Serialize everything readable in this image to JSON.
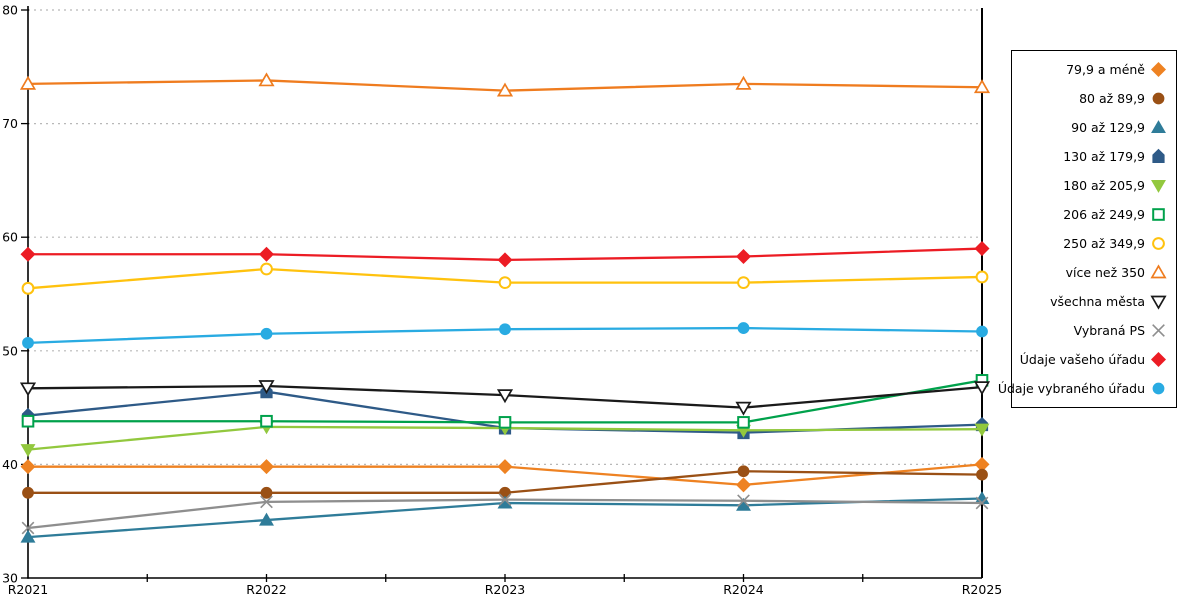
{
  "chart_data": {
    "type": "line",
    "title": "",
    "x_categories": [
      "R2021",
      "R2022",
      "R2023",
      "R2024",
      "R2025"
    ],
    "ylim": [
      30,
      80
    ],
    "yticks": [
      30,
      40,
      50,
      60,
      70,
      80
    ],
    "grid": "horizontal dotted gridlines at 40,50,60,70,80",
    "legend_position": "right outside",
    "annotations": {
      "vertical_line_at_category": "R2025"
    },
    "axis_color": "#000000",
    "gridline_color": "#b8b8b8",
    "series": [
      {
        "name": "79,9 a méně",
        "color": "#EE8222",
        "marker": "diamond",
        "fill": "solid",
        "values": [
          39.8,
          39.8,
          39.8,
          38.2,
          40.0
        ]
      },
      {
        "name": "80 až 89,9",
        "color": "#9A5015",
        "marker": "circle",
        "fill": "solid",
        "values": [
          37.5,
          37.5,
          37.5,
          39.4,
          39.1
        ]
      },
      {
        "name": "90 až 129,9",
        "color": "#2F7C99",
        "marker": "triangle-up",
        "fill": "solid",
        "values": [
          33.6,
          35.1,
          36.6,
          36.4,
          37.0
        ]
      },
      {
        "name": "130 až 179,9",
        "color": "#2E5A87",
        "marker": "pentagon",
        "fill": "solid",
        "values": [
          44.3,
          46.4,
          43.2,
          42.8,
          43.5
        ]
      },
      {
        "name": "180 až 205,9",
        "color": "#92C83E",
        "marker": "triangle-down",
        "fill": "solid",
        "values": [
          41.3,
          43.3,
          43.2,
          43.0,
          43.1
        ]
      },
      {
        "name": "206 až 249,9",
        "color": "#00A14B",
        "marker": "square",
        "fill": "open",
        "values": [
          43.8,
          43.8,
          43.7,
          43.7,
          47.4
        ]
      },
      {
        "name": "250 až 349,9",
        "color": "#FFC20E",
        "marker": "circle",
        "fill": "open",
        "values": [
          55.5,
          57.2,
          56.0,
          56.0,
          56.5
        ]
      },
      {
        "name": "více než 350",
        "color": "#EF7C1F",
        "marker": "triangle-up",
        "fill": "open",
        "values": [
          73.5,
          73.8,
          72.9,
          73.5,
          73.2
        ]
      },
      {
        "name": "všechna města",
        "color": "#1A1A1A",
        "marker": "triangle-down",
        "fill": "open",
        "values": [
          46.7,
          46.9,
          46.1,
          45.0,
          46.8
        ]
      },
      {
        "name": "Vybraná PS",
        "color": "#8E8E8E",
        "marker": "x",
        "fill": "line",
        "values": [
          34.4,
          36.7,
          36.9,
          36.8,
          36.6
        ]
      },
      {
        "name": "Údaje vašeho úřadu",
        "color": "#EC1C24",
        "marker": "diamond",
        "fill": "solid",
        "values": [
          58.5,
          58.5,
          58.0,
          58.3,
          59.0
        ]
      },
      {
        "name": "Údaje vybraného úřadu",
        "color": "#29ABE2",
        "marker": "circle",
        "fill": "solid",
        "values": [
          50.7,
          51.5,
          51.9,
          52.0,
          51.7
        ]
      }
    ]
  }
}
